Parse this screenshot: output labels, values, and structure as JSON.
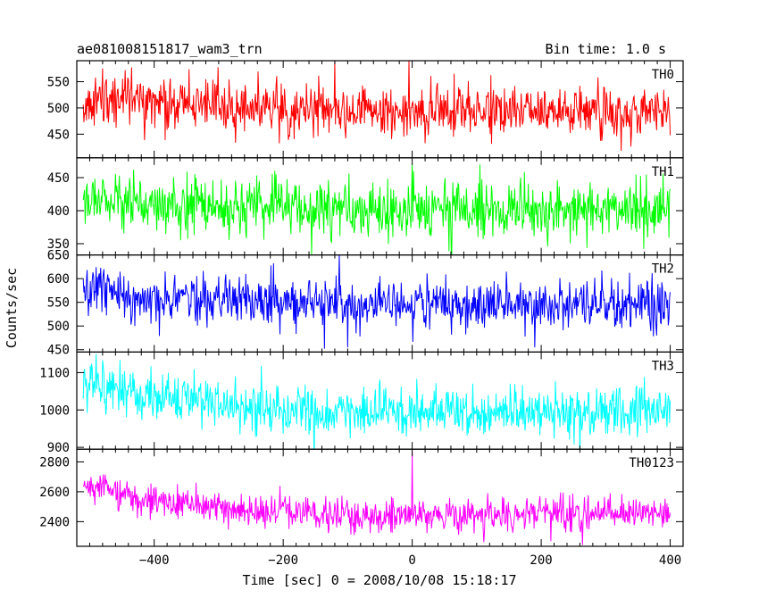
{
  "title_left": "ae081008151817_wam3_trn",
  "title_right": "Bin time: 1.0 s",
  "chart_data": {
    "type": "line",
    "xlabel": "Time [sec] 0 = 2008/10/08 15:18:17",
    "ylabel": "Counts/sec",
    "xlim": [
      -520,
      420
    ],
    "x_ticks": [
      -400,
      -200,
      0,
      200,
      400
    ],
    "x_tick_labels": [
      "−400",
      "−200",
      "0",
      "200",
      "400"
    ],
    "x_range": [
      -510,
      400
    ],
    "grid": false,
    "panels": [
      {
        "name": "TH0",
        "color": "#ff0000",
        "ylim": [
          405,
          590
        ],
        "y_ticks": [
          450,
          500,
          550
        ],
        "y_tick_labels": [
          "450",
          "500",
          "550"
        ],
        "baseline": [
          [
            -510,
            515
          ],
          [
            -420,
            520
          ],
          [
            -300,
            500
          ],
          [
            -100,
            495
          ],
          [
            0,
            490
          ],
          [
            200,
            495
          ],
          [
            400,
            490
          ]
        ],
        "noise_sd": 26,
        "spikes": [
          [
            -120,
            590
          ],
          [
            -5,
            590
          ]
        ]
      },
      {
        "name": "TH1",
        "color": "#00ff00",
        "ylim": [
          333,
          480
        ],
        "y_ticks": [
          350,
          400,
          450
        ],
        "y_tick_labels": [
          "350",
          "400",
          "450"
        ],
        "baseline": [
          [
            -510,
            415
          ],
          [
            -350,
            410
          ],
          [
            -100,
            400
          ],
          [
            100,
            400
          ],
          [
            400,
            400
          ]
        ],
        "noise_sd": 22,
        "spikes": [
          [
            0,
            470
          ]
        ]
      },
      {
        "name": "TH2",
        "color": "#0000ff",
        "ylim": [
          445,
          650
        ],
        "y_ticks": [
          450,
          500,
          550,
          600,
          650
        ],
        "y_tick_labels": [
          "450",
          "500",
          "550",
          "600",
          "650"
        ],
        "baseline": [
          [
            -510,
            585
          ],
          [
            -420,
            560
          ],
          [
            -200,
            550
          ],
          [
            0,
            545
          ],
          [
            200,
            545
          ],
          [
            400,
            545
          ]
        ],
        "noise_sd": 27,
        "spikes": [
          [
            -100,
            455
          ],
          [
            190,
            455
          ]
        ]
      },
      {
        "name": "TH3",
        "color": "#00ffff",
        "ylim": [
          895,
          1155
        ],
        "y_ticks": [
          900,
          1000,
          1100
        ],
        "y_tick_labels": [
          "900",
          "1000",
          "1100"
        ],
        "baseline": [
          [
            -510,
            1070
          ],
          [
            -420,
            1040
          ],
          [
            -200,
            1000
          ],
          [
            0,
            990
          ],
          [
            200,
            995
          ],
          [
            400,
            1000
          ]
        ],
        "noise_sd": 34,
        "spikes": [
          [
            -490,
            1150
          ]
        ]
      },
      {
        "name": "TH0123",
        "color": "#ff00ff",
        "ylim": [
          2235,
          2885
        ],
        "y_ticks": [
          2400,
          2600,
          2800
        ],
        "y_tick_labels": [
          "2400",
          "2600",
          "2800"
        ],
        "baseline": [
          [
            -510,
            2650
          ],
          [
            -420,
            2550
          ],
          [
            -300,
            2500
          ],
          [
            -150,
            2440
          ],
          [
            0,
            2430
          ],
          [
            200,
            2450
          ],
          [
            400,
            2450
          ]
        ],
        "noise_sd": 55,
        "spikes": [
          [
            0,
            2870
          ]
        ]
      }
    ]
  }
}
